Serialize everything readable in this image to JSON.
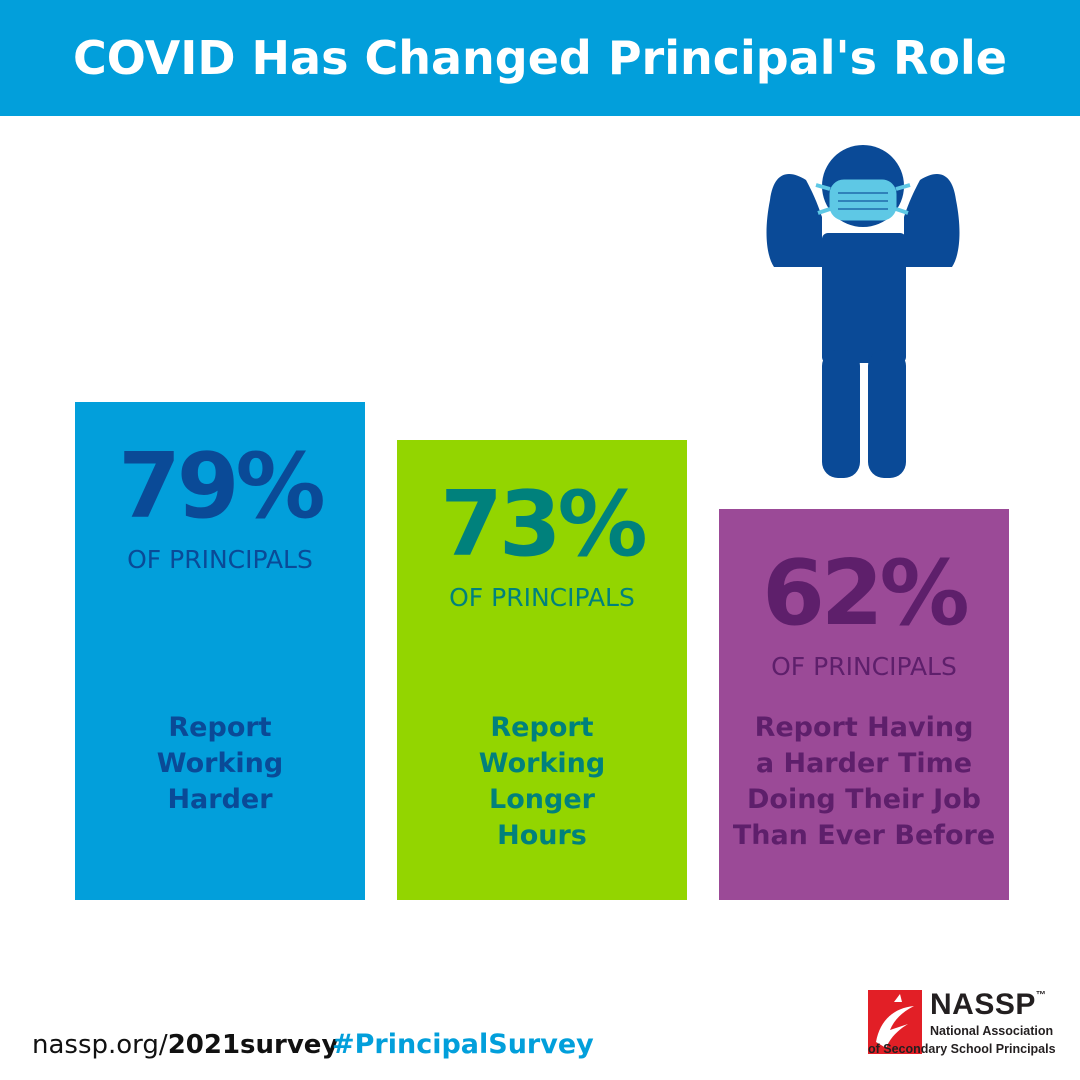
{
  "title": "COVID Has Changed Principal's Role",
  "chart_data": {
    "type": "bar",
    "title": "COVID Has Changed Principal's Role",
    "unit": "%",
    "categories": [
      "Report Working Harder",
      "Report Working Longer Hours",
      "Report Having a Harder Time Doing Their Job Than Ever Before"
    ],
    "values": [
      79,
      73,
      62
    ],
    "bars": [
      {
        "value_label": "79%",
        "sub_label": "OF PRINCIPALS",
        "description": "Report\nWorking\nHarder",
        "fill_color": "#029fdb",
        "text_color": "#0a4a97"
      },
      {
        "value_label": "73%",
        "sub_label": "OF PRINCIPALS",
        "description": "Report\nWorking\nLonger\nHours",
        "fill_color": "#93d500",
        "text_color": "#00817c"
      },
      {
        "value_label": "62%",
        "sub_label": "OF PRINCIPALS",
        "description": "Report Having\na Harder Time\nDoing Their Job\nThan Ever Before",
        "fill_color": "#9b4a97",
        "text_color": "#5e1f6b"
      }
    ]
  },
  "illustration": {
    "icon": "masked-person-icon",
    "body_color": "#0a4a97",
    "mask_color": "#5ec8e5"
  },
  "footer": {
    "url_prefix": "nassp.org/",
    "url_bold": "2021survey",
    "hashtag": "#PrincipalSurvey",
    "hashtag_color": "#029fdb"
  },
  "logo": {
    "name": "NASSP",
    "trademark": "™",
    "line1": "National Association",
    "line2": "of Secondary School Principals",
    "mark_color": "#e21f26"
  }
}
